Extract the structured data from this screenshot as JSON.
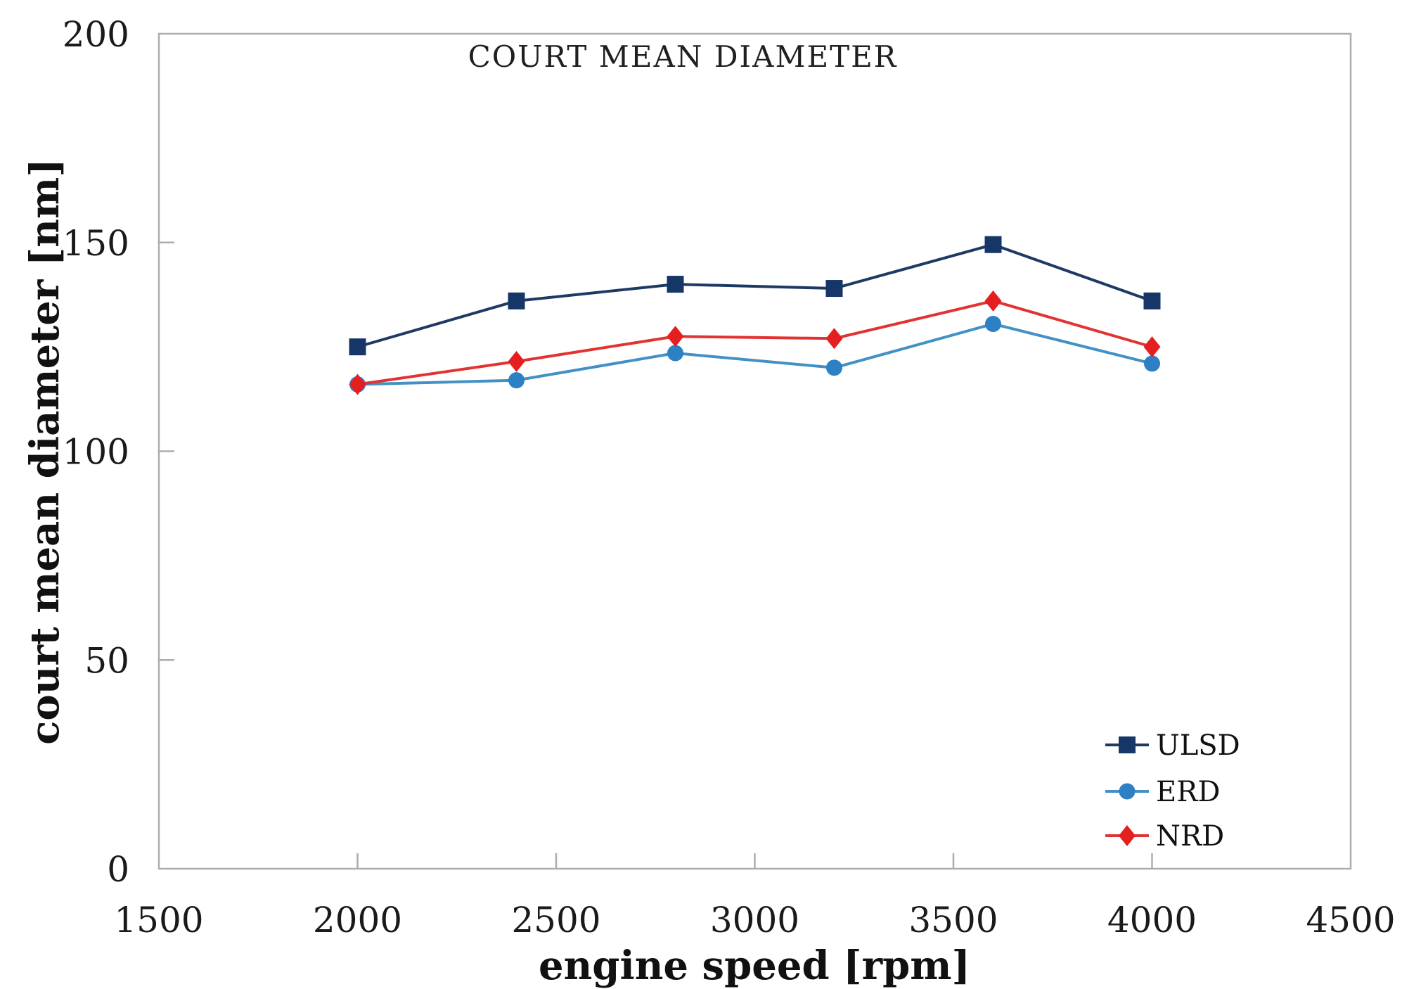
{
  "figure": {
    "background": "#ffffff",
    "axis_color": "#adadad",
    "text_color": "#1a1a1a"
  },
  "chart_data": {
    "type": "line",
    "title": "COURT MEAN DIAMETER",
    "xlabel": "engine speed [rpm]",
    "ylabel": "court mean diameter [nm]",
    "x": [
      2000,
      2400,
      2800,
      3200,
      3600,
      4000
    ],
    "series": [
      {
        "name": "ULSD",
        "marker": "square",
        "marker_color": "#163668",
        "line_color": "#1e3a64",
        "values": [
          125,
          136,
          140,
          139,
          149.5,
          136
        ]
      },
      {
        "name": "ERD",
        "marker": "circle",
        "marker_color": "#2d80c4",
        "line_color": "#4391c4",
        "values": [
          116,
          117,
          123.5,
          120,
          130.5,
          121
        ]
      },
      {
        "name": "NRD",
        "marker": "diamond",
        "marker_color": "#e51f1f",
        "line_color": "#e23333",
        "values": [
          116,
          121.5,
          127.5,
          127,
          136,
          125
        ]
      }
    ],
    "xlim": [
      1500,
      4500
    ],
    "ylim": [
      0,
      200
    ],
    "x_ticks": [
      1500,
      2000,
      2500,
      3000,
      3500,
      4000,
      4500
    ],
    "y_ticks": [
      0,
      50,
      100,
      150,
      200
    ],
    "grid": false,
    "legend_position": "inside-bottom-right",
    "legend_entries": [
      "ULSD",
      "ERD",
      "NRD"
    ]
  }
}
